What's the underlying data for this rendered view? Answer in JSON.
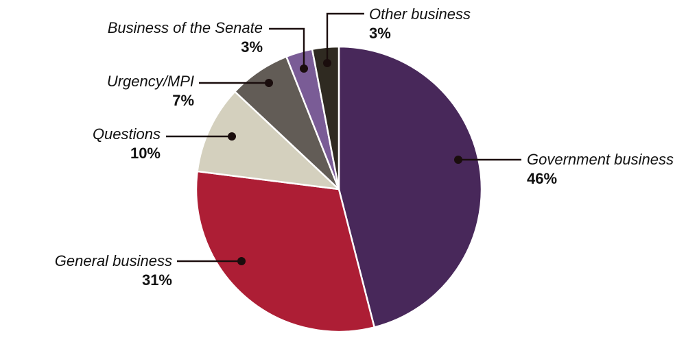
{
  "chart_data": {
    "type": "pie",
    "title": "",
    "slices": [
      {
        "label": "Government business",
        "value": 46,
        "display": "46%",
        "color": "#48285a"
      },
      {
        "label": "General business",
        "value": 31,
        "display": "31%",
        "color": "#ad1e35"
      },
      {
        "label": "Questions",
        "value": 10,
        "display": "10%",
        "color": "#d4d0be"
      },
      {
        "label": "Urgency/MPI",
        "value": 7,
        "display": "7%",
        "color": "#625c56"
      },
      {
        "label": "Business of the Senate",
        "value": 3,
        "display": "3%",
        "color": "#7a5c96"
      },
      {
        "label": "Other business",
        "value": 3,
        "display": "3%",
        "color": "#2f2a21"
      }
    ]
  }
}
